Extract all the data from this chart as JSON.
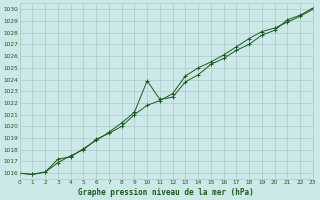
{
  "title": "Graphe pression niveau de la mer (hPa)",
  "bg_color": "#cce8e8",
  "grid_color": "#aacccc",
  "line_color": "#1a5c1a",
  "marker_color": "#1a5c1a",
  "text_color": "#1a5c1a",
  "xlim": [
    0,
    23
  ],
  "ylim": [
    1015.5,
    1030.5
  ],
  "yticks": [
    1016,
    1017,
    1018,
    1019,
    1020,
    1021,
    1022,
    1023,
    1024,
    1025,
    1026,
    1027,
    1028,
    1029,
    1030
  ],
  "xticks": [
    0,
    1,
    2,
    3,
    4,
    5,
    6,
    7,
    8,
    9,
    10,
    11,
    12,
    13,
    14,
    15,
    16,
    17,
    18,
    19,
    20,
    21,
    22,
    23
  ],
  "series1": {
    "x": [
      0,
      1,
      2,
      3,
      4,
      5,
      6,
      7,
      8,
      9,
      10,
      11,
      12,
      13,
      14,
      15,
      16,
      17,
      18,
      19,
      20,
      21,
      22,
      23
    ],
    "y": [
      1016.0,
      1015.9,
      1016.1,
      1017.2,
      1017.4,
      1018.1,
      1018.8,
      1019.5,
      1020.3,
      1021.2,
      1023.9,
      1022.3,
      1022.5,
      1023.8,
      1024.4,
      1025.3,
      1025.8,
      1026.5,
      1027.0,
      1027.8,
      1028.2,
      1029.1,
      1029.5,
      1030.1
    ]
  },
  "series2": {
    "x": [
      0,
      1,
      2,
      3,
      4,
      5,
      6,
      7,
      8,
      9,
      10,
      11,
      12,
      13,
      14,
      15,
      16,
      17,
      18,
      19,
      20,
      21,
      22,
      23
    ],
    "y": [
      1016.0,
      1015.9,
      1016.1,
      1016.9,
      1017.5,
      1018.0,
      1018.9,
      1019.4,
      1020.0,
      1021.0,
      1021.8,
      1022.2,
      1022.8,
      1024.3,
      1025.0,
      1025.5,
      1026.1,
      1026.8,
      1027.5,
      1028.1,
      1028.4,
      1028.9,
      1029.4,
      1030.0
    ]
  }
}
